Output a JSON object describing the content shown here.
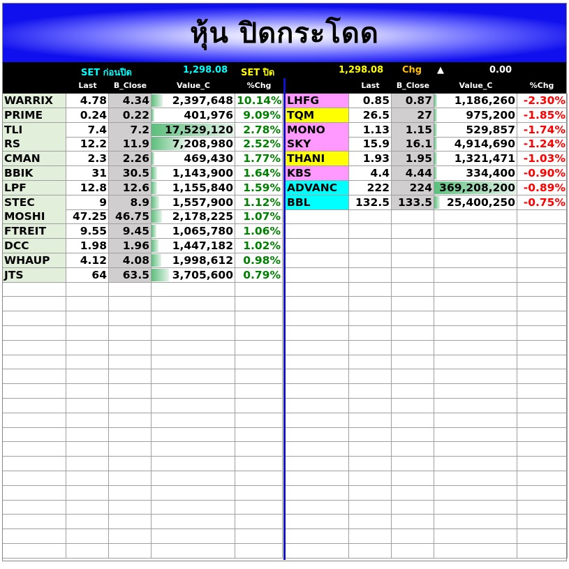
{
  "title": "หุ้น ปิดกระโดด",
  "header": {
    "set_pre_label": "SET ก่อนปิด",
    "set_pre_value": "1,298.08",
    "set_close_label": "SET  ปิด",
    "set_close_value": "1,298.08",
    "chg_label": "Chg",
    "chg_arrow": "▲",
    "chg_value": "0.00"
  },
  "columns": [
    "Last",
    "B_Close",
    "Value_C",
    "%Chg"
  ],
  "colors": {
    "gain": "#008000",
    "loss": "#ff0000",
    "name_green": "#e2efda",
    "name_pink": "#ff99ff",
    "name_yellow": "#ffff00",
    "name_cyan": "#00ffff",
    "bclose_bg": "#d0cece",
    "divider": "#1010cc"
  },
  "gainers": [
    {
      "name": "WARRIX",
      "last": "4.78",
      "bclose": "4.34",
      "value": "2,397,648",
      "pct": "10.14%"
    },
    {
      "name": "PRIME",
      "last": "0.24",
      "bclose": "0.22",
      "value": "401,976",
      "pct": "9.09%"
    },
    {
      "name": "TLI",
      "last": "7.4",
      "bclose": "7.2",
      "value": "17,529,120",
      "pct": "2.78%"
    },
    {
      "name": "RS",
      "last": "12.2",
      "bclose": "11.9",
      "value": "7,208,980",
      "pct": "2.52%"
    },
    {
      "name": "CMAN",
      "last": "2.3",
      "bclose": "2.26",
      "value": "469,430",
      "pct": "1.77%"
    },
    {
      "name": "BBIK",
      "last": "31",
      "bclose": "30.5",
      "value": "1,143,900",
      "pct": "1.64%"
    },
    {
      "name": "LPF",
      "last": "12.8",
      "bclose": "12.6",
      "value": "1,155,840",
      "pct": "1.59%"
    },
    {
      "name": "STEC",
      "last": "9",
      "bclose": "8.9",
      "value": "1,557,900",
      "pct": "1.12%"
    },
    {
      "name": "MOSHI",
      "last": "47.25",
      "bclose": "46.75",
      "value": "2,178,225",
      "pct": "1.07%"
    },
    {
      "name": "FTREIT",
      "last": "9.55",
      "bclose": "9.45",
      "value": "1,065,780",
      "pct": "1.06%"
    },
    {
      "name": "DCC",
      "last": "1.98",
      "bclose": "1.96",
      "value": "1,447,182",
      "pct": "1.02%"
    },
    {
      "name": "WHAUP",
      "last": "4.12",
      "bclose": "4.08",
      "value": "1,998,612",
      "pct": "0.98%"
    },
    {
      "name": "JTS",
      "last": "64",
      "bclose": "63.5",
      "value": "3,705,600",
      "pct": "0.79%"
    }
  ],
  "losers": [
    {
      "name": "LHFG",
      "tag": "pink",
      "last": "0.85",
      "bclose": "0.87",
      "value": "1,186,260",
      "pct": "-2.30%"
    },
    {
      "name": "TQM",
      "tag": "yellow",
      "last": "26.5",
      "bclose": "27",
      "value": "975,200",
      "pct": "-1.85%"
    },
    {
      "name": "MONO",
      "tag": "pink",
      "last": "1.13",
      "bclose": "1.15",
      "value": "529,857",
      "pct": "-1.74%"
    },
    {
      "name": "SKY",
      "tag": "pink",
      "last": "15.9",
      "bclose": "16.1",
      "value": "4,914,690",
      "pct": "-1.24%"
    },
    {
      "name": "THANI",
      "tag": "yellow",
      "last": "1.93",
      "bclose": "1.95",
      "value": "1,321,471",
      "pct": "-1.03%"
    },
    {
      "name": "KBS",
      "tag": "pink",
      "last": "4.4",
      "bclose": "4.44",
      "value": "334,400",
      "pct": "-0.90%"
    },
    {
      "name": "ADVANC",
      "tag": "cyan",
      "last": "222",
      "bclose": "224",
      "value": "369,208,200",
      "pct": "-0.89%"
    },
    {
      "name": "BBL",
      "tag": "cyan",
      "last": "132.5",
      "bclose": "133.5",
      "value": "25,400,250",
      "pct": "-0.75%"
    }
  ]
}
